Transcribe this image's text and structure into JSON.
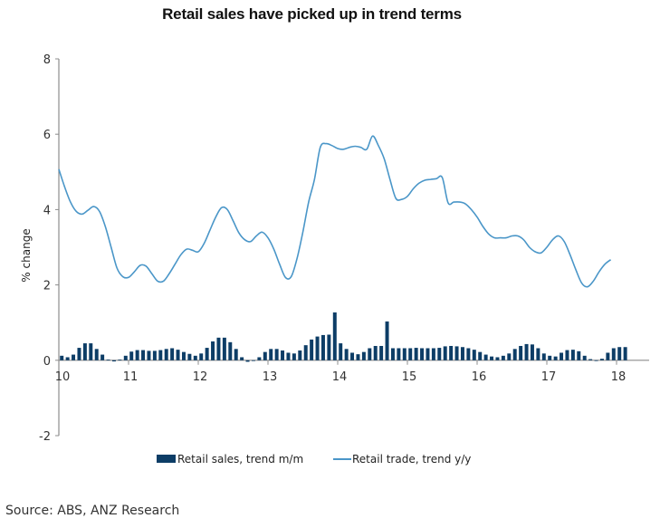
{
  "chart_data": {
    "type": "bar+line",
    "title": "Retail sales have picked up in trend terms",
    "xlabel": "",
    "ylabel": "% change",
    "ylim": [
      -2,
      8
    ],
    "yticks": [
      "8",
      "6",
      "4",
      "2",
      "0",
      "-2"
    ],
    "ytick_values": [
      8,
      6,
      4,
      2,
      0,
      -2
    ],
    "xticks": [
      "10",
      "11",
      "12",
      "13",
      "14",
      "15",
      "16",
      "17",
      "18"
    ],
    "xtick_values": [
      2010,
      2011,
      2012,
      2013,
      2014,
      2015,
      2016,
      2017,
      2018
    ],
    "x_start": "2010-01",
    "x_end": "2018-02",
    "grid": false,
    "legend_position": "bottom",
    "series": [
      {
        "name": "Retail sales, trend m/m",
        "type": "bar",
        "color": "#0d3d66",
        "start": "2010-01",
        "frequency": "monthly",
        "values": [
          0.12,
          0.08,
          0.15,
          0.33,
          0.45,
          0.45,
          0.3,
          0.15,
          0.02,
          -0.03,
          0.02,
          0.12,
          0.23,
          0.27,
          0.27,
          0.25,
          0.25,
          0.27,
          0.3,
          0.32,
          0.28,
          0.22,
          0.17,
          0.12,
          0.18,
          0.33,
          0.5,
          0.6,
          0.6,
          0.48,
          0.3,
          0.08,
          -0.04,
          0.0,
          0.08,
          0.22,
          0.3,
          0.3,
          0.26,
          0.2,
          0.18,
          0.26,
          0.4,
          0.55,
          0.63,
          0.67,
          0.68,
          1.27,
          0.45,
          0.3,
          0.2,
          0.16,
          0.22,
          0.32,
          0.38,
          0.38,
          1.03,
          0.32,
          0.32,
          0.32,
          0.32,
          0.33,
          0.32,
          0.32,
          0.32,
          0.33,
          0.37,
          0.38,
          0.37,
          0.35,
          0.32,
          0.28,
          0.22,
          0.15,
          0.1,
          0.08,
          0.12,
          0.18,
          0.3,
          0.38,
          0.43,
          0.42,
          0.32,
          0.18,
          0.12,
          0.1,
          0.2,
          0.27,
          0.28,
          0.24,
          0.12,
          0.03,
          0.0,
          0.04,
          0.2,
          0.32,
          0.35,
          0.35
        ]
      },
      {
        "name": "Retail trade, trend y/y",
        "type": "line",
        "color": "#4a96c8",
        "start": "2010-01",
        "frequency": "monthly",
        "values": [
          5.07,
          4.6,
          4.2,
          3.95,
          3.88,
          3.98,
          4.08,
          3.95,
          3.55,
          3.0,
          2.45,
          2.22,
          2.2,
          2.35,
          2.52,
          2.5,
          2.3,
          2.1,
          2.1,
          2.3,
          2.55,
          2.8,
          2.95,
          2.92,
          2.88,
          3.1,
          3.45,
          3.8,
          4.05,
          4.0,
          3.7,
          3.38,
          3.2,
          3.15,
          3.3,
          3.4,
          3.25,
          2.95,
          2.55,
          2.2,
          2.22,
          2.7,
          3.4,
          4.2,
          4.8,
          5.65,
          5.75,
          5.7,
          5.62,
          5.6,
          5.65,
          5.68,
          5.65,
          5.6,
          5.95,
          5.7,
          5.35,
          4.8,
          4.3,
          4.27,
          4.35,
          4.55,
          4.7,
          4.78,
          4.8,
          4.82,
          4.85,
          4.18,
          4.2,
          4.2,
          4.15,
          4.0,
          3.8,
          3.55,
          3.35,
          3.25,
          3.25,
          3.25,
          3.3,
          3.3,
          3.2,
          3.0,
          2.88,
          2.85,
          3.0,
          3.2,
          3.3,
          3.15,
          2.8,
          2.4,
          2.05,
          1.95,
          2.1,
          2.35,
          2.55,
          2.67
        ]
      }
    ]
  },
  "source": "Source: ABS, ANZ Research"
}
